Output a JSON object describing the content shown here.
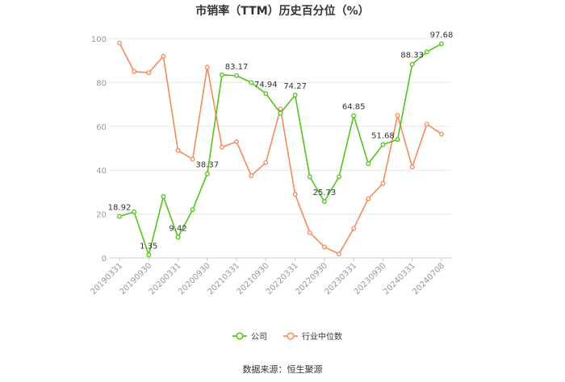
{
  "chart_data": {
    "type": "line",
    "title": "市销率（TTM）历史百分位（%）",
    "source": "数据来源：恒生聚源",
    "ylim": [
      0,
      100
    ],
    "yticks": [
      0,
      20,
      40,
      60,
      80,
      100
    ],
    "grid": true,
    "legend_position": "bottom",
    "x_tick_labels": [
      "20190331",
      "20190930",
      "20200331",
      "20200930",
      "20210331",
      "20210930",
      "20220331",
      "20220930",
      "20230331",
      "20230930",
      "20240331",
      "20240708"
    ],
    "series": [
      {
        "name": "公司",
        "color": "#52c41a",
        "values": [
          18.92,
          21,
          1.35,
          28,
          9.42,
          22,
          38.37,
          83.5,
          83.17,
          80,
          74.94,
          66,
          74.27,
          37,
          25.73,
          37,
          64.85,
          43,
          51.68,
          54,
          88.33,
          94,
          97.68
        ]
      },
      {
        "name": "行业中位数",
        "color": "#f5895e",
        "values": [
          98,
          85,
          84.5,
          92,
          49,
          45,
          87,
          50.5,
          53,
          37.5,
          43.5,
          68,
          29,
          11.5,
          5,
          1.8,
          13.5,
          27,
          34,
          65,
          41.5,
          61,
          56.5
        ]
      }
    ],
    "data_labels": [
      {
        "text": "18.92",
        "index": 0,
        "value": 18.92
      },
      {
        "text": "1.35",
        "index": 2,
        "value": 1.35
      },
      {
        "text": "9.42",
        "index": 4,
        "value": 9.42
      },
      {
        "text": "38.37",
        "index": 6,
        "value": 38.37
      },
      {
        "text": "83.17",
        "index": 8,
        "value": 83.17
      },
      {
        "text": "74.94",
        "index": 10,
        "value": 74.94
      },
      {
        "text": "74.27",
        "index": 12,
        "value": 74.27
      },
      {
        "text": "25.73",
        "index": 14,
        "value": 25.73
      },
      {
        "text": "64.85",
        "index": 16,
        "value": 64.85
      },
      {
        "text": "51.68",
        "index": 18,
        "value": 51.68
      },
      {
        "text": "88.33",
        "index": 20,
        "value": 88.33
      },
      {
        "text": "97.68",
        "index": 22,
        "value": 97.68
      }
    ]
  }
}
